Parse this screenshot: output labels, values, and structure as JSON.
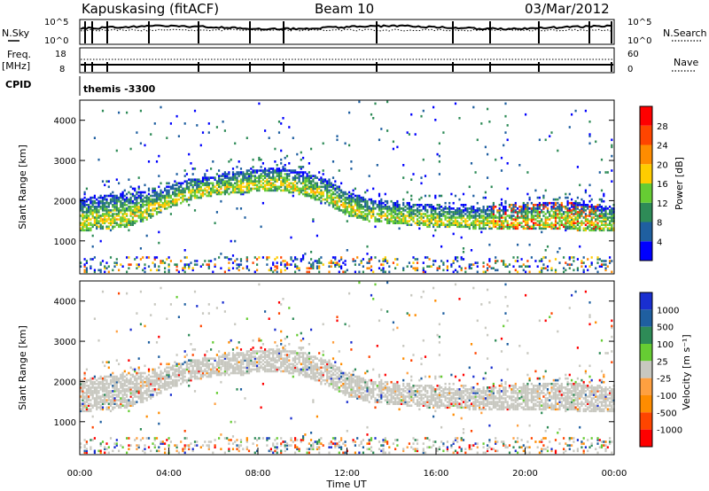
{
  "header": {
    "station": "Kapuskasing (fitACF)",
    "beam": "Beam 10",
    "date": "03/Mar/2012"
  },
  "noise_panel": {
    "left_label": "N.Sky",
    "left_ticks": [
      "10^5",
      "10^0"
    ],
    "right_label": "N.Search",
    "right_ticks": [
      "10^5",
      "10^0"
    ]
  },
  "freq_panel": {
    "left_label_1": "Freq.",
    "left_label_2": "[MHz]",
    "left_ticks": [
      "18",
      "8"
    ],
    "right_label": "Nave",
    "right_ticks": [
      "60",
      "0"
    ]
  },
  "cpid_panel": {
    "label": "CPID",
    "mode": "themis -3300"
  },
  "colors": {
    "power": [
      "#0000ff",
      "#1f5fa0",
      "#2e8b57",
      "#66cc33",
      "#ffcc00",
      "#ff8c00",
      "#ff4500",
      "#ff0000"
    ],
    "velocity": [
      "#1a2fd0",
      "#1f5fa0",
      "#2e8b57",
      "#66cc33",
      "#c8c8c0",
      "#ffa040",
      "#ff8c00",
      "#ff4500",
      "#ff0000"
    ],
    "ground_scatter": "#c8c8c0"
  },
  "chart_data": [
    {
      "type": "heatmap",
      "parameter": "Power",
      "ylabel": "Slant Range [km]",
      "yticks": [
        "1000",
        "2000",
        "3000",
        "4000"
      ],
      "ylim": [
        180,
        4500
      ],
      "colorbar_label": "Power [dB]",
      "colorbar_ticks": [
        "4",
        "8",
        "12",
        "16",
        "20",
        "24",
        "28"
      ],
      "colorbar_range": [
        0,
        32
      ],
      "scatter_band": [
        {
          "time": "00:00",
          "lower_km": 1200,
          "upper_km": 2000
        },
        {
          "time": "01:00",
          "lower_km": 1250,
          "upper_km": 2100
        },
        {
          "time": "02:00",
          "lower_km": 1300,
          "upper_km": 2150
        },
        {
          "time": "03:00",
          "lower_km": 1500,
          "upper_km": 2200
        },
        {
          "time": "04:00",
          "lower_km": 1800,
          "upper_km": 2350
        },
        {
          "time": "05:00",
          "lower_km": 2000,
          "upper_km": 2500
        },
        {
          "time": "06:00",
          "lower_km": 2100,
          "upper_km": 2600
        },
        {
          "time": "07:00",
          "lower_km": 2150,
          "upper_km": 2700
        },
        {
          "time": "08:00",
          "lower_km": 2200,
          "upper_km": 2750
        },
        {
          "time": "09:00",
          "lower_km": 2200,
          "upper_km": 2800
        },
        {
          "time": "10:00",
          "lower_km": 2100,
          "upper_km": 2700
        },
        {
          "time": "11:00",
          "lower_km": 1900,
          "upper_km": 2500
        },
        {
          "time": "12:00",
          "lower_km": 1600,
          "upper_km": 2200
        },
        {
          "time": "13:00",
          "lower_km": 1450,
          "upper_km": 2000
        },
        {
          "time": "14:00",
          "lower_km": 1400,
          "upper_km": 1950
        },
        {
          "time": "15:00",
          "lower_km": 1350,
          "upper_km": 1900
        },
        {
          "time": "16:00",
          "lower_km": 1300,
          "upper_km": 1850
        },
        {
          "time": "17:00",
          "lower_km": 1300,
          "upper_km": 1800
        },
        {
          "time": "18:00",
          "lower_km": 1250,
          "upper_km": 1800
        },
        {
          "time": "19:00",
          "lower_km": 1250,
          "upper_km": 1850
        },
        {
          "time": "20:00",
          "lower_km": 1250,
          "upper_km": 1900
        },
        {
          "time": "21:00",
          "lower_km": 1250,
          "upper_km": 1950
        },
        {
          "time": "22:00",
          "lower_km": 1250,
          "upper_km": 1950
        },
        {
          "time": "23:00",
          "lower_km": 1200,
          "upper_km": 1900
        },
        {
          "time": "24:00",
          "lower_km": 1200,
          "upper_km": 1800
        }
      ]
    },
    {
      "type": "heatmap",
      "parameter": "Velocity",
      "ylabel": "Slant Range [km]",
      "yticks": [
        "1000",
        "2000",
        "3000",
        "4000"
      ],
      "ylim": [
        180,
        4500
      ],
      "colorbar_label": "Velocity [m s⁻¹]",
      "colorbar_ticks": [
        "1000",
        "500",
        "100",
        "25",
        "-25",
        "-100",
        "-500",
        "-1000"
      ],
      "xlabel": "Time UT",
      "xticks": [
        "00:00",
        "04:00",
        "08:00",
        "12:00",
        "16:00",
        "20:00",
        "00:00"
      ],
      "xlim_hours": [
        0,
        24
      ],
      "dominant_class": "ground scatter (|v| < 25 m/s)"
    }
  ]
}
